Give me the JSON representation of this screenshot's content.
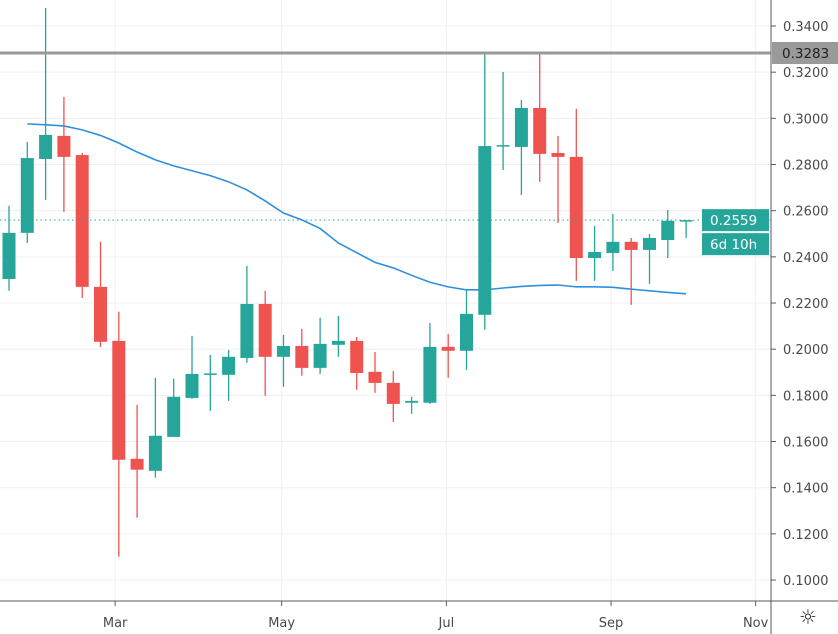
{
  "chart_data": {
    "type": "candlestick",
    "title": "",
    "xlabel": "",
    "ylabel": "",
    "ylim": [
      0.0923,
      0.3487
    ],
    "y_ticks": [
      "0.1000",
      "0.1200",
      "0.1400",
      "0.1600",
      "0.1800",
      "0.2000",
      "0.2200",
      "0.2400",
      "0.2600",
      "0.2800",
      "0.3000",
      "0.3200",
      "0.3400"
    ],
    "x_ticks": [
      {
        "label": "Mar",
        "index": 5.8
      },
      {
        "label": "May",
        "index": 14.9
      },
      {
        "label": "Jul",
        "index": 23.9
      },
      {
        "label": "Sep",
        "index": 32.9
      },
      {
        "label": "Nov",
        "index": 40.8
      }
    ],
    "grid": true,
    "candles": [
      [
        0.2304,
        0.2621,
        0.2253,
        0.2504
      ],
      [
        0.2504,
        0.2898,
        0.246,
        0.2828
      ],
      [
        0.2824,
        0.3478,
        0.2647,
        0.2928
      ],
      [
        0.2924,
        0.3093,
        0.2595,
        0.2833
      ],
      [
        0.2841,
        0.285,
        0.2222,
        0.227
      ],
      [
        0.227,
        0.2465,
        0.201,
        0.2032
      ],
      [
        0.2036,
        0.2162,
        0.1101,
        0.1521
      ],
      [
        0.1525,
        0.1759,
        0.127,
        0.1478
      ],
      [
        0.1473,
        0.1876,
        0.1443,
        0.1625
      ],
      [
        0.162,
        0.1872,
        0.162,
        0.1794
      ],
      [
        0.1789,
        0.2058,
        0.1785,
        0.1893
      ],
      [
        0.1893,
        0.1975,
        0.1733,
        0.1895
      ],
      [
        0.1889,
        0.1997,
        0.1776,
        0.1967
      ],
      [
        0.1962,
        0.2361,
        0.1941,
        0.2196
      ],
      [
        0.2196,
        0.2253,
        0.1798,
        0.1967
      ],
      [
        0.1967,
        0.2062,
        0.1837,
        0.2014
      ],
      [
        0.2014,
        0.2088,
        0.1885,
        0.1919
      ],
      [
        0.1919,
        0.2136,
        0.1893,
        0.2023
      ],
      [
        0.2019,
        0.2144,
        0.1967,
        0.2036
      ],
      [
        0.2036,
        0.2053,
        0.1824,
        0.1897
      ],
      [
        0.1902,
        0.1988,
        0.1811,
        0.1854
      ],
      [
        0.1854,
        0.1906,
        0.1685,
        0.1763
      ],
      [
        0.1768,
        0.1794,
        0.172,
        0.1776
      ],
      [
        0.1768,
        0.2114,
        0.1763,
        0.201
      ],
      [
        0.201,
        0.2066,
        0.1876,
        0.1993
      ],
      [
        0.1993,
        0.2257,
        0.191,
        0.2153
      ],
      [
        0.2149,
        0.3279,
        0.2084,
        0.288
      ],
      [
        0.288,
        0.3201,
        0.2776,
        0.2884
      ],
      [
        0.2876,
        0.308,
        0.2668,
        0.3045
      ],
      [
        0.3045,
        0.3283,
        0.2725,
        0.2846
      ],
      [
        0.285,
        0.2924,
        0.2547,
        0.2833
      ],
      [
        0.2833,
        0.3041,
        0.2296,
        0.2395
      ],
      [
        0.2395,
        0.2534,
        0.2296,
        0.2421
      ],
      [
        0.2417,
        0.2586,
        0.2339,
        0.2465
      ],
      [
        0.2465,
        0.2482,
        0.2192,
        0.243
      ],
      [
        0.243,
        0.2499,
        0.2283,
        0.2482
      ],
      [
        0.2473,
        0.2603,
        0.2395,
        0.2556
      ],
      [
        0.2556,
        0.2559,
        0.2482,
        0.2559
      ]
    ],
    "candle_format": [
      "open",
      "high",
      "low",
      "close"
    ],
    "moving_average": [
      null,
      0.2976,
      0.2972,
      0.2967,
      0.295,
      0.2926,
      0.2893,
      0.2854,
      0.282,
      0.2794,
      0.2773,
      0.2752,
      0.2725,
      0.269,
      0.2642,
      0.259,
      0.256,
      0.2523,
      0.246,
      0.2418,
      0.2376,
      0.2352,
      0.232,
      0.229,
      0.227,
      0.2257,
      0.2257,
      0.2265,
      0.2272,
      0.2276,
      0.2278,
      0.227,
      0.227,
      0.2268,
      0.226,
      0.2253,
      0.2246,
      0.224
    ],
    "horizontal_line": {
      "value": 0.3283,
      "label": "0.3283"
    },
    "last_price": {
      "value": 0.2559,
      "label": "0.2559",
      "countdown": "6d 10h"
    },
    "colors": {
      "up": "#26a69a",
      "down": "#ef5350",
      "ma": "#2f8fde",
      "hline": "#999999",
      "grid": "#eef0f3",
      "axis": "#5a5a5a"
    }
  },
  "toolbar": {
    "settings_icon": "gear-icon"
  }
}
